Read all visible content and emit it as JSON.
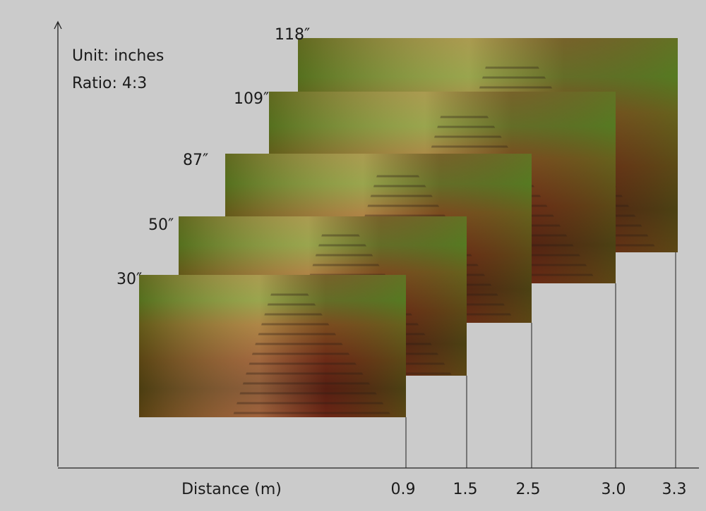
{
  "legend": {
    "unit": "Unit: inches",
    "ratio": "Ratio: 4:3"
  },
  "x_axis": {
    "title": "Distance (m)"
  },
  "screens": [
    {
      "size": "30″",
      "distance": "0.9"
    },
    {
      "size": "50″",
      "distance": "1.5"
    },
    {
      "size": "87″",
      "distance": "2.5"
    },
    {
      "size": "109″",
      "distance": "3.0"
    },
    {
      "size": "118″",
      "distance": "3.3"
    }
  ]
}
